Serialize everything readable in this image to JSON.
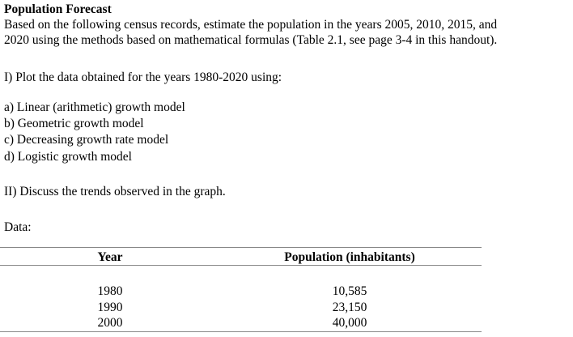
{
  "title": "Population Forecast",
  "intro": [
    "Based on the following census records, estimate the population in the years 2005, 2010, 2015, and",
    "2020 using the methods based on mathematical formulas (Table 2.1, see page 3-4  in this handout)."
  ],
  "task1": "I)  Plot the data obtained for the years 1980-2020 using:",
  "models": [
    "a)  Linear (arithmetic) growth model",
    "b)  Geometric growth model",
    "c)  Decreasing growth rate model",
    "d)  Logistic growth model"
  ],
  "task2": "II)  Discuss the trends observed in the graph.",
  "data_label": "Data:",
  "table": {
    "headers": [
      "Year",
      "Population (inhabitants)"
    ],
    "rows": [
      [
        "1980",
        "10,585"
      ],
      [
        "1990",
        "23,150"
      ],
      [
        "2000",
        "40,000"
      ]
    ]
  }
}
